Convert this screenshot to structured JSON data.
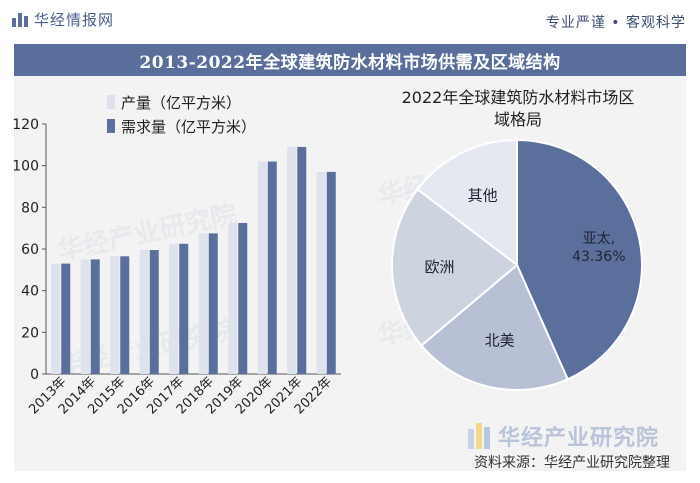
{
  "header": {
    "brand": "华经情报网",
    "slogan": "专业严谨 • 客观科学",
    "accent_color": "#5a6e9b"
  },
  "title": "2013-2022年全球建筑防水材料市场供需及区域结构",
  "chart_data": [
    {
      "type": "bar",
      "categories": [
        "2013年",
        "2014年",
        "2015年",
        "2016年",
        "2017年",
        "2018年",
        "2019年",
        "2020年",
        "2021年",
        "2022年"
      ],
      "series": [
        {
          "name": "产量（亿平方米）",
          "color": "#dde2ec",
          "values": [
            53,
            55,
            56.5,
            59.5,
            62.5,
            67.5,
            72.5,
            102,
            109,
            97
          ]
        },
        {
          "name": "需求量（亿平方米）",
          "color": "#5b6f9c",
          "values": [
            53,
            55,
            56.5,
            59.5,
            62.5,
            67.5,
            72.5,
            102,
            109,
            97
          ]
        }
      ],
      "ylim": [
        0,
        120
      ],
      "yticks": [
        0,
        20,
        40,
        60,
        80,
        100,
        120
      ],
      "legend": "top-left",
      "grid": false
    },
    {
      "type": "pie",
      "title_lines": [
        "2022年全球建筑防水材料市场区",
        "域格局"
      ],
      "slices": [
        {
          "label": "亚太",
          "value": 43.36,
          "value_label": "43.36%",
          "color": "#5b6f9c"
        },
        {
          "label": "北美",
          "value": 20.5,
          "color": "#b7c0d4"
        },
        {
          "label": "欧洲",
          "value": 21.5,
          "color": "#cdd3df"
        },
        {
          "label": "其他",
          "value": 14.64,
          "color": "#e4e8f0"
        }
      ]
    }
  ],
  "watermark": "华经产业研究院",
  "footer": {
    "brand": "华经产业研究院",
    "source": "资料来源：华经产业研究院整理"
  }
}
